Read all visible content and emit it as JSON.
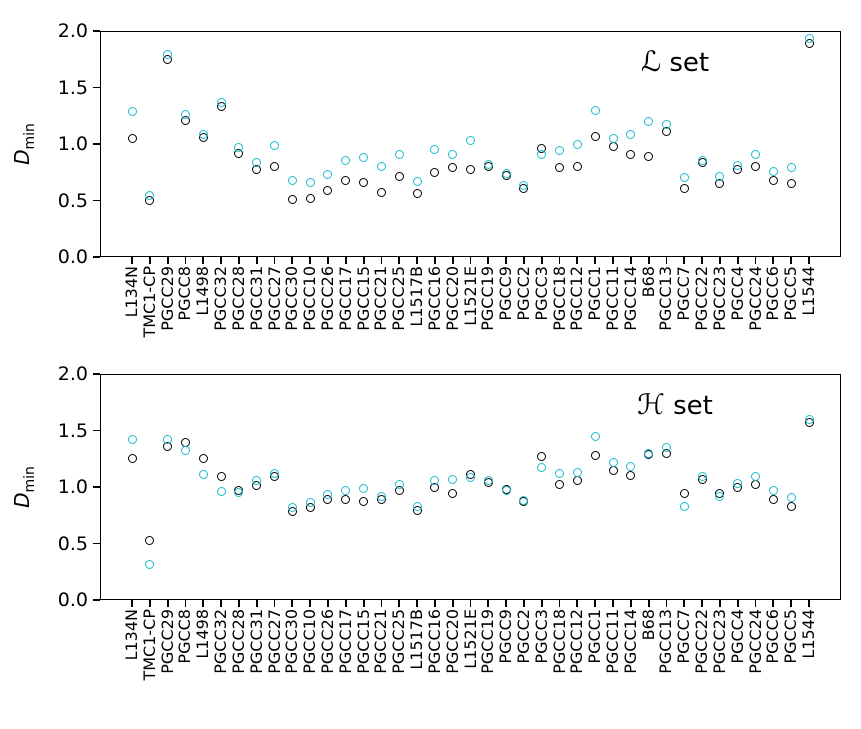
{
  "figure": {
    "background": "#ffffff",
    "axis_color": "#000000",
    "y_axis_label_main": "D",
    "y_axis_label_sub": "min",
    "y_tick_labels": [
      "0.0",
      "0.5",
      "1.0",
      "1.5",
      "2.0"
    ]
  },
  "chart_data": [
    {
      "type": "scatter",
      "annotation": "ℒ set",
      "annotation_letter": "ℒ",
      "annotation_word": " set",
      "ylabel": "D_min",
      "ylim": [
        0.0,
        2.0
      ],
      "yticks": [
        0.0,
        0.5,
        1.0,
        1.5,
        2.0
      ],
      "grid": false,
      "legend_position": "none",
      "marker_style": "open-circle",
      "categories": [
        "L134N",
        "TMC1-CP",
        "PGCC29",
        "PGCC8",
        "L1498",
        "PGCC32",
        "PGCC28",
        "PGCC31",
        "PGCC27",
        "PGCC30",
        "PGCC10",
        "PGCC26",
        "PGCC17",
        "PGCC15",
        "PGCC21",
        "PGCC25",
        "L1517B",
        "PGCC16",
        "PGCC20",
        "L1521E",
        "PGCC19",
        "PGCC9",
        "PGCC2",
        "PGCC3",
        "PGCC18",
        "PGCC12",
        "PGCC1",
        "PGCC11",
        "PGCC14",
        "B68",
        "PGCC13",
        "PGCC7",
        "PGCC22",
        "PGCC23",
        "PGCC4",
        "PGCC24",
        "PGCC6",
        "PGCC5",
        "L1544"
      ],
      "series": [
        {
          "name": "black",
          "color": "#000000",
          "values": [
            1.05,
            0.5,
            1.75,
            1.21,
            1.06,
            1.33,
            0.92,
            0.77,
            0.8,
            0.51,
            0.52,
            0.59,
            0.68,
            0.66,
            0.57,
            0.71,
            0.56,
            0.75,
            0.79,
            0.77,
            0.8,
            0.72,
            0.61,
            0.96,
            0.79,
            0.8,
            1.07,
            0.98,
            0.91,
            0.89,
            1.11,
            0.61,
            0.84,
            0.65,
            0.77,
            0.8,
            0.68,
            0.65,
            1.89
          ]
        },
        {
          "name": "cyan",
          "color": "#17becf",
          "values": [
            1.29,
            0.54,
            1.79,
            1.26,
            1.08,
            1.37,
            0.97,
            0.84,
            0.99,
            0.68,
            0.66,
            0.73,
            0.85,
            0.88,
            0.8,
            0.91,
            0.67,
            0.95,
            0.91,
            1.03,
            0.82,
            0.74,
            0.63,
            0.91,
            0.94,
            1.0,
            1.3,
            1.05,
            1.08,
            1.2,
            1.17,
            0.7,
            0.85,
            0.71,
            0.81,
            0.91,
            0.76,
            0.79,
            1.93
          ]
        }
      ]
    },
    {
      "type": "scatter",
      "annotation": "ℋ set",
      "annotation_letter": "ℋ",
      "annotation_word": " set",
      "ylabel": "D_min",
      "ylim": [
        0.0,
        2.0
      ],
      "yticks": [
        0.0,
        0.5,
        1.0,
        1.5,
        2.0
      ],
      "grid": false,
      "legend_position": "none",
      "marker_style": "open-circle",
      "categories": [
        "L134N",
        "TMC1-CP",
        "PGCC29",
        "PGCC8",
        "L1498",
        "PGCC32",
        "PGCC28",
        "PGCC31",
        "PGCC27",
        "PGCC30",
        "PGCC10",
        "PGCC26",
        "PGCC17",
        "PGCC15",
        "PGCC21",
        "PGCC25",
        "L1517B",
        "PGCC16",
        "PGCC20",
        "L1521E",
        "PGCC19",
        "PGCC9",
        "PGCC2",
        "PGCC3",
        "PGCC18",
        "PGCC12",
        "PGCC1",
        "PGCC11",
        "PGCC14",
        "B68",
        "PGCC13",
        "PGCC7",
        "PGCC22",
        "PGCC23",
        "PGCC4",
        "PGCC24",
        "PGCC6",
        "PGCC5",
        "L1544"
      ],
      "series": [
        {
          "name": "black",
          "color": "#000000",
          "values": [
            1.25,
            0.53,
            1.36,
            1.39,
            1.25,
            1.09,
            0.97,
            1.01,
            1.09,
            0.78,
            0.82,
            0.89,
            0.89,
            0.87,
            0.89,
            0.97,
            0.79,
            1.0,
            0.94,
            1.11,
            1.04,
            0.98,
            0.87,
            1.27,
            1.02,
            1.06,
            1.28,
            1.15,
            1.1,
            1.29,
            1.3,
            0.94,
            1.07,
            0.94,
            1.0,
            1.02,
            0.89,
            0.83,
            1.57
          ]
        },
        {
          "name": "cyan",
          "color": "#17becf",
          "values": [
            1.42,
            0.31,
            1.42,
            1.32,
            1.11,
            0.96,
            0.95,
            1.06,
            1.12,
            0.82,
            0.86,
            0.93,
            0.97,
            0.99,
            0.92,
            1.02,
            0.83,
            1.06,
            1.07,
            1.08,
            1.06,
            0.97,
            0.88,
            1.17,
            1.12,
            1.13,
            1.45,
            1.22,
            1.18,
            1.3,
            1.35,
            0.83,
            1.09,
            0.92,
            1.03,
            1.09,
            0.97,
            0.91,
            1.6
          ]
        }
      ]
    }
  ]
}
